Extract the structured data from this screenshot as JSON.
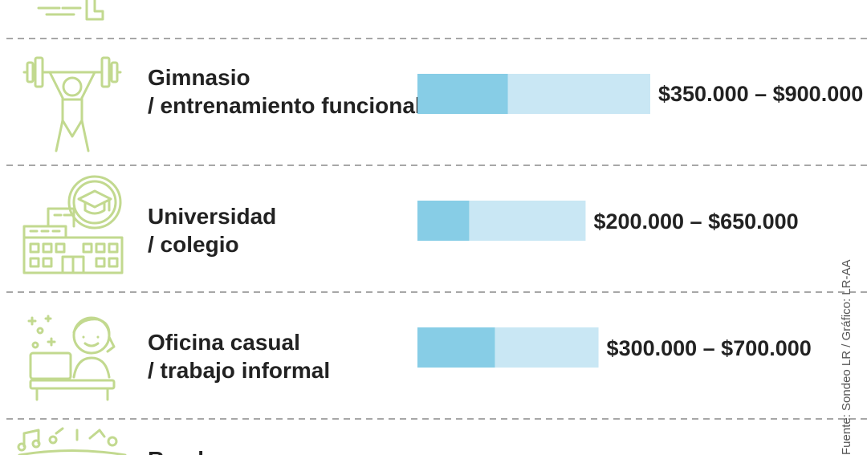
{
  "chart_data": {
    "type": "bar",
    "unit": "COP",
    "categories": [
      {
        "label_line1": "Gimnasio",
        "label_line2": "/ entrenamiento funcional",
        "min": 350000,
        "max": 900000,
        "range_label": "$350.000 – $900.000",
        "icon": "weightlifter-icon"
      },
      {
        "label_line1": "Universidad",
        "label_line2": "/ colegio",
        "min": 200000,
        "max": 650000,
        "range_label": "$200.000 – $650.000",
        "icon": "university-building-icon"
      },
      {
        "label_line1": "Oficina casual",
        "label_line2": "/ trabajo informal",
        "min": 300000,
        "max": 700000,
        "range_label": "$300.000 – $700.000",
        "icon": "office-worker-icon"
      },
      {
        "label_line1": "Rumba",
        "label_line2": "",
        "min": null,
        "max": null,
        "range_label": "",
        "icon": "music-notes-icon"
      }
    ],
    "source": "Fuente: Sondeo LR / Gráfico: LR-AA",
    "colors": {
      "bar_min": "#87cde6",
      "bar_range": "#c9e7f4",
      "icon": "#c2d98f",
      "divider": "#8a8a8a"
    }
  }
}
